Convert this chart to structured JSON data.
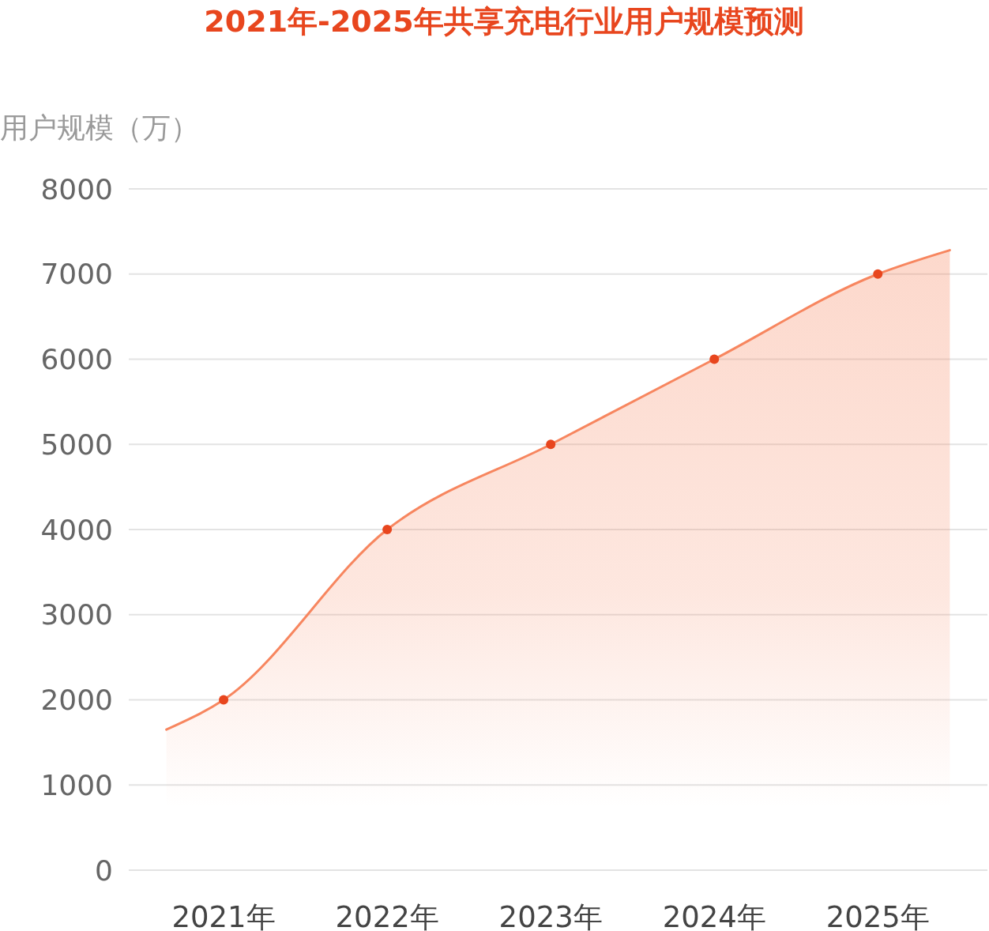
{
  "chart_data": {
    "type": "area",
    "title": "2021年-2025年共享充电行业用户规模预测",
    "ylabel": "用户规模（万）",
    "xlim": [
      2020.42,
      2025.67
    ],
    "xticks": [
      {
        "value": 2021,
        "label": "2021年"
      },
      {
        "value": 2022,
        "label": "2022年"
      },
      {
        "value": 2023,
        "label": "2023年"
      },
      {
        "value": 2024,
        "label": "2024年"
      },
      {
        "value": 2025,
        "label": "2025年"
      }
    ],
    "ylim": [
      0,
      8000
    ],
    "yticks": [
      0,
      1000,
      2000,
      3000,
      4000,
      5000,
      6000,
      7000,
      8000
    ],
    "grid": "y",
    "series": [
      {
        "color": "#f7865f",
        "x": [
          2020.65,
          2021,
          2022,
          2023,
          2024,
          2025,
          2025.44
        ],
        "values": [
          1650,
          2000,
          4000,
          5000,
          6000,
          7000,
          7280
        ]
      },
      {
        "type": "scatter",
        "color": "#e8461e",
        "marker": "circle",
        "x": [
          2021,
          2022,
          2023,
          2024,
          2025
        ],
        "values": [
          2000,
          4000,
          5000,
          6000,
          7000
        ]
      }
    ]
  }
}
